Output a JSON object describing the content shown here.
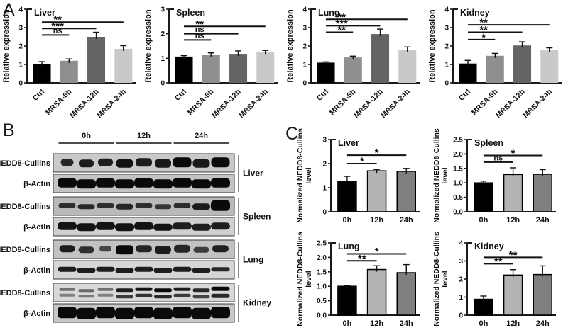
{
  "panels": {
    "a": "A",
    "b": "B",
    "c": "C"
  },
  "chart_data": [
    {
      "type": "bar",
      "panel": "A",
      "title": "Liver",
      "ylabel_lines": [
        "Relative expression"
      ],
      "ylim": [
        0,
        4
      ],
      "yticks": [
        "0",
        "1",
        "2",
        "3",
        "4"
      ],
      "categories": [
        "Ctrl",
        "MRSA-6h",
        "MRSA-12h",
        "MRSA-24h"
      ],
      "values": [
        1.02,
        1.2,
        2.5,
        1.85
      ],
      "errors": [
        0.13,
        0.1,
        0.25,
        0.17
      ],
      "bar_colors": [
        "#000000",
        "#8f8f8f",
        "#646464",
        "#c9c9c9"
      ],
      "bar_stroke": "none",
      "significance": [
        {
          "from": 0,
          "to": 1,
          "label": "ns",
          "y": 2.6
        },
        {
          "from": 0,
          "to": 2,
          "label": "***",
          "y": 2.95
        },
        {
          "from": 0,
          "to": 3,
          "label": "**",
          "y": 3.3
        }
      ]
    },
    {
      "type": "bar",
      "panel": "A",
      "title": "Spleen",
      "ylabel_lines": [
        "Relative expression"
      ],
      "ylim": [
        0,
        3
      ],
      "yticks": [
        "0",
        "1",
        "2",
        "3"
      ],
      "categories": [
        "Ctrl",
        "MRSA-6h",
        "MRSA-12h",
        "MRSA-24h"
      ],
      "values": [
        1.07,
        1.13,
        1.18,
        1.26
      ],
      "errors": [
        0.04,
        0.09,
        0.12,
        0.06
      ],
      "bar_colors": [
        "#000000",
        "#8f8f8f",
        "#646464",
        "#c9c9c9"
      ],
      "bar_stroke": "none",
      "significance": [
        {
          "from": 0,
          "to": 1,
          "label": "ns",
          "y": 1.75
        },
        {
          "from": 0,
          "to": 2,
          "label": "ns",
          "y": 2.0
        },
        {
          "from": 0,
          "to": 3,
          "label": "**",
          "y": 2.3
        }
      ]
    },
    {
      "type": "bar",
      "panel": "A",
      "title": "Lung",
      "ylabel_lines": [
        "Relative expression"
      ],
      "ylim": [
        0,
        4
      ],
      "yticks": [
        "0",
        "1",
        "2",
        "3",
        "4"
      ],
      "categories": [
        "Ctrl",
        "MRSA-6h",
        "MRSA-12h",
        "MRSA-24h"
      ],
      "values": [
        1.1,
        1.38,
        2.65,
        1.8
      ],
      "errors": [
        0.04,
        0.07,
        0.27,
        0.15
      ],
      "bar_colors": [
        "#000000",
        "#8f8f8f",
        "#646464",
        "#c9c9c9"
      ],
      "bar_stroke": "none",
      "significance": [
        {
          "from": 0,
          "to": 1,
          "label": "**",
          "y": 2.75
        },
        {
          "from": 0,
          "to": 2,
          "label": "***",
          "y": 3.1
        },
        {
          "from": 0,
          "to": 3,
          "label": "**",
          "y": 3.45
        }
      ]
    },
    {
      "type": "bar",
      "panel": "A",
      "title": "Kidney",
      "ylabel_lines": [
        "Relative expression"
      ],
      "ylim": [
        0,
        4
      ],
      "yticks": [
        "0",
        "1",
        "2",
        "3",
        "4"
      ],
      "categories": [
        "Ctrl",
        "MRSA-6h",
        "MRSA-12h",
        "MRSA-24h"
      ],
      "values": [
        1.05,
        1.47,
        2.03,
        1.78
      ],
      "errors": [
        0.17,
        0.13,
        0.2,
        0.12
      ],
      "bar_colors": [
        "#000000",
        "#8f8f8f",
        "#646464",
        "#c9c9c9"
      ],
      "bar_stroke": "none",
      "significance": [
        {
          "from": 0,
          "to": 1,
          "label": "*",
          "y": 2.35
        },
        {
          "from": 0,
          "to": 2,
          "label": "**",
          "y": 2.75
        },
        {
          "from": 0,
          "to": 3,
          "label": "**",
          "y": 3.15
        }
      ]
    },
    {
      "type": "bar",
      "panel": "C",
      "title": "Liver",
      "ylabel_lines": [
        "Normalized NEDD8-Cullins",
        "level"
      ],
      "ylim": [
        0,
        3
      ],
      "yticks": [
        "0",
        "1",
        "2",
        "3"
      ],
      "categories": [
        "0h",
        "12h",
        "24h"
      ],
      "values": [
        1.25,
        1.7,
        1.68
      ],
      "errors": [
        0.22,
        0.06,
        0.12
      ],
      "bar_colors": [
        "#000000",
        "#b3b3b3",
        "#7f7f7f"
      ],
      "bar_stroke": "#000000",
      "significance": [
        {
          "from": 0,
          "to": 1,
          "label": "*",
          "y": 2.0
        },
        {
          "from": 0,
          "to": 2,
          "label": "*",
          "y": 2.35
        }
      ]
    },
    {
      "type": "bar",
      "panel": "C",
      "title": "Spleen",
      "ylabel_lines": [
        "Normalized NEDD8-Cullins",
        "level"
      ],
      "ylim": [
        0,
        2.5
      ],
      "yticks": [
        "0.0",
        "0.5",
        "1.0",
        "1.5",
        "2.0",
        "2.5"
      ],
      "categories": [
        "0h",
        "12h",
        "24h"
      ],
      "values": [
        1.0,
        1.29,
        1.3
      ],
      "errors": [
        0.06,
        0.23,
        0.16
      ],
      "bar_colors": [
        "#000000",
        "#b3b3b3",
        "#7f7f7f"
      ],
      "bar_stroke": "#000000",
      "significance": [
        {
          "from": 0,
          "to": 1,
          "label": "ns",
          "y": 1.72
        },
        {
          "from": 0,
          "to": 2,
          "label": "*",
          "y": 1.95
        }
      ]
    },
    {
      "type": "bar",
      "panel": "C",
      "title": "Lung",
      "ylabel_lines": [
        "Normalized NEDD8-Cullins",
        "level"
      ],
      "ylim": [
        0,
        2.5
      ],
      "yticks": [
        "0.0",
        "0.5",
        "1.0",
        "1.5",
        "2.0",
        "2.5"
      ],
      "categories": [
        "0h",
        "12h",
        "24h"
      ],
      "values": [
        1.0,
        1.58,
        1.47
      ],
      "errors": [
        0.02,
        0.13,
        0.28
      ],
      "bar_colors": [
        "#000000",
        "#b3b3b3",
        "#7f7f7f"
      ],
      "bar_stroke": "#000000",
      "significance": [
        {
          "from": 0,
          "to": 1,
          "label": "**",
          "y": 1.88
        },
        {
          "from": 0,
          "to": 2,
          "label": "*",
          "y": 2.12
        }
      ]
    },
    {
      "type": "bar",
      "panel": "C",
      "title": "Kidney",
      "ylabel_lines": [
        "Normalized NEDD8-Cullins",
        "level"
      ],
      "ylim": [
        0,
        4
      ],
      "yticks": [
        "0",
        "1",
        "2",
        "3",
        "4"
      ],
      "categories": [
        "0h",
        "12h",
        "24h"
      ],
      "values": [
        0.88,
        2.22,
        2.25
      ],
      "errors": [
        0.18,
        0.3,
        0.48
      ],
      "bar_colors": [
        "#000000",
        "#b3b3b3",
        "#7f7f7f"
      ],
      "bar_stroke": "#000000",
      "significance": [
        {
          "from": 0,
          "to": 1,
          "label": "**",
          "y": 2.85
        },
        {
          "from": 0,
          "to": 2,
          "label": "**",
          "y": 3.2
        }
      ]
    }
  ],
  "blot": {
    "time_labels": [
      "0h",
      "12h",
      "24h"
    ],
    "protein_labels": [
      "NEDD8-Cullins",
      "β-Actin"
    ],
    "organs": [
      {
        "name": "Liver",
        "nedd8": {
          "style": "single",
          "bg": "#c9c9c9",
          "widths": [
            18,
            21,
            21,
            24,
            23,
            23,
            26,
            24,
            26
          ],
          "heights": [
            10,
            11,
            11,
            12,
            12,
            12,
            14,
            12,
            14
          ],
          "intensities": [
            0.85,
            0.9,
            0.9,
            0.95,
            0.9,
            0.92,
            1,
            0.92,
            1
          ]
        },
        "actin": {
          "style": "single",
          "bg": "#c4c4c4",
          "widths": [
            27,
            27,
            27,
            27,
            27,
            27,
            27,
            27,
            27
          ],
          "heights": [
            13,
            13,
            13,
            13,
            13,
            13,
            13,
            13,
            13
          ],
          "intensities": [
            1,
            1,
            1,
            1,
            1,
            1,
            1,
            1,
            1
          ]
        }
      },
      {
        "name": "Spleen",
        "nedd8": {
          "style": "single",
          "bg": "#b9b9b9",
          "widths": [
            24,
            24,
            24,
            24,
            24,
            23,
            24,
            25,
            27
          ],
          "heights": [
            7,
            7,
            7,
            8,
            7,
            7,
            7,
            9,
            15
          ],
          "intensities": [
            0.8,
            0.82,
            0.8,
            0.85,
            0.8,
            0.75,
            0.8,
            0.9,
            1
          ]
        },
        "actin": {
          "style": "single",
          "bg": "#cfcfcf",
          "widths": [
            27,
            27,
            27,
            27,
            27,
            27,
            27,
            27,
            27
          ],
          "heights": [
            11,
            11,
            11,
            11,
            11,
            10,
            10,
            10,
            10
          ],
          "intensities": [
            0.95,
            0.95,
            0.95,
            0.95,
            0.95,
            0.95,
            0.9,
            0.9,
            0.9
          ]
        }
      },
      {
        "name": "Lung",
        "nedd8": {
          "style": "single",
          "bg": "#c2c2c2",
          "widths": [
            22,
            22,
            17,
            25,
            23,
            23,
            23,
            22,
            23
          ],
          "heights": [
            10,
            9,
            8,
            13,
            10,
            11,
            11,
            8,
            10
          ],
          "intensities": [
            0.9,
            0.8,
            0.68,
            1,
            0.85,
            0.9,
            0.85,
            0.72,
            0.88
          ]
        },
        "actin": {
          "style": "single",
          "bg": "#d6d6d6",
          "widths": [
            26,
            26,
            26,
            26,
            26,
            26,
            26,
            26,
            26
          ],
          "heights": [
            7,
            7,
            7,
            7,
            7,
            7,
            7,
            7,
            6
          ],
          "intensities": [
            0.9,
            0.9,
            0.9,
            0.9,
            0.9,
            0.9,
            0.9,
            0.9,
            0.85
          ]
        }
      },
      {
        "name": "Kidney",
        "nedd8": {
          "style": "double",
          "bg": "#d8d8d8",
          "widths": [
            22,
            22,
            22,
            24,
            24,
            25,
            24,
            24,
            26
          ],
          "heights": [
            4,
            4,
            4,
            5,
            5,
            5,
            5,
            5,
            6
          ],
          "intensities": [
            0.5,
            0.55,
            0.5,
            0.9,
            0.95,
            1,
            0.9,
            0.85,
            1
          ]
        },
        "actin": {
          "style": "single",
          "bg": "#c7c7c7",
          "widths": [
            27,
            27,
            27,
            27,
            27,
            27,
            27,
            27,
            27
          ],
          "heights": [
            16,
            16,
            16,
            16,
            16,
            16,
            16,
            16,
            16
          ],
          "intensities": [
            1,
            1,
            1,
            1,
            1,
            1,
            1,
            1,
            1
          ]
        }
      }
    ]
  }
}
